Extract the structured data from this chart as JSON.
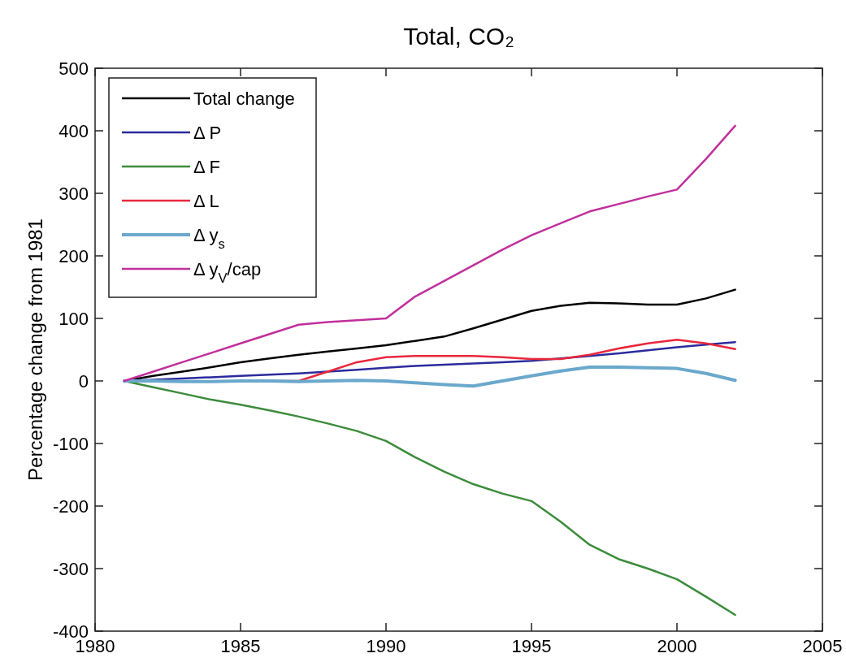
{
  "chart_data": {
    "type": "line",
    "title": "Total, CO₂",
    "ylabel": "Percentage change from 1981",
    "x": [
      1981,
      1982,
      1983,
      1984,
      1985,
      1986,
      1987,
      1988,
      1989,
      1990,
      1991,
      1992,
      1993,
      1994,
      1995,
      1996,
      1997,
      1998,
      1999,
      2000,
      2001,
      2002
    ],
    "series": [
      {
        "name": "Total change",
        "color": "#000000",
        "values": [
          0,
          8,
          15,
          22,
          30,
          36,
          42,
          47,
          52,
          57,
          64,
          71,
          84,
          98,
          112,
          120,
          125,
          124,
          122,
          122,
          132,
          146
        ]
      },
      {
        "name": "Δ P",
        "color": "#2b2b9c",
        "values": [
          0,
          2,
          4,
          6,
          8,
          10,
          12,
          15,
          18,
          21,
          24,
          26,
          28,
          30,
          32,
          36,
          40,
          44,
          49,
          54,
          58,
          62
        ]
      },
      {
        "name": "Δ F",
        "color": "#3c8c3c",
        "values": [
          0,
          -10,
          -20,
          -30,
          -38,
          -47,
          -57,
          -68,
          -80,
          -96,
          -122,
          -145,
          -165,
          -180,
          -192,
          -225,
          -262,
          -285,
          -300,
          -317,
          -345,
          -374
        ]
      },
      {
        "name": "Δ L",
        "color": "#e8283c",
        "values": [
          null,
          null,
          null,
          null,
          null,
          0,
          0,
          15,
          30,
          38,
          40,
          40,
          40,
          38,
          35,
          35,
          42,
          52,
          60,
          66,
          60,
          51
        ]
      },
      {
        "name": "Δ y$_{s}$",
        "color": "#6aa8cc",
        "values": [
          0,
          0,
          -1,
          -1,
          0,
          0,
          -1,
          0,
          1,
          0,
          -3,
          -6,
          -8,
          0,
          8,
          16,
          22,
          22,
          21,
          20,
          12,
          1
        ]
      },
      {
        "name": "Δ y$_{V}$/cap",
        "color": "#c0309c",
        "values": [
          0,
          15,
          30,
          45,
          60,
          75,
          90,
          94,
          97,
          100,
          135,
          160,
          185,
          210,
          233,
          252,
          271,
          283,
          295,
          306,
          355,
          408
        ]
      }
    ],
    "xlim": [
      1980,
      2005
    ],
    "xticks": [
      1980,
      1985,
      1990,
      1995,
      2000,
      2005
    ],
    "ylim": [
      -400,
      500
    ],
    "yticks": [
      -400,
      -300,
      -200,
      -100,
      0,
      100,
      200,
      300,
      400,
      500
    ],
    "grid": false,
    "legend": "top left",
    "line_style": "solid",
    "marker": "none"
  }
}
